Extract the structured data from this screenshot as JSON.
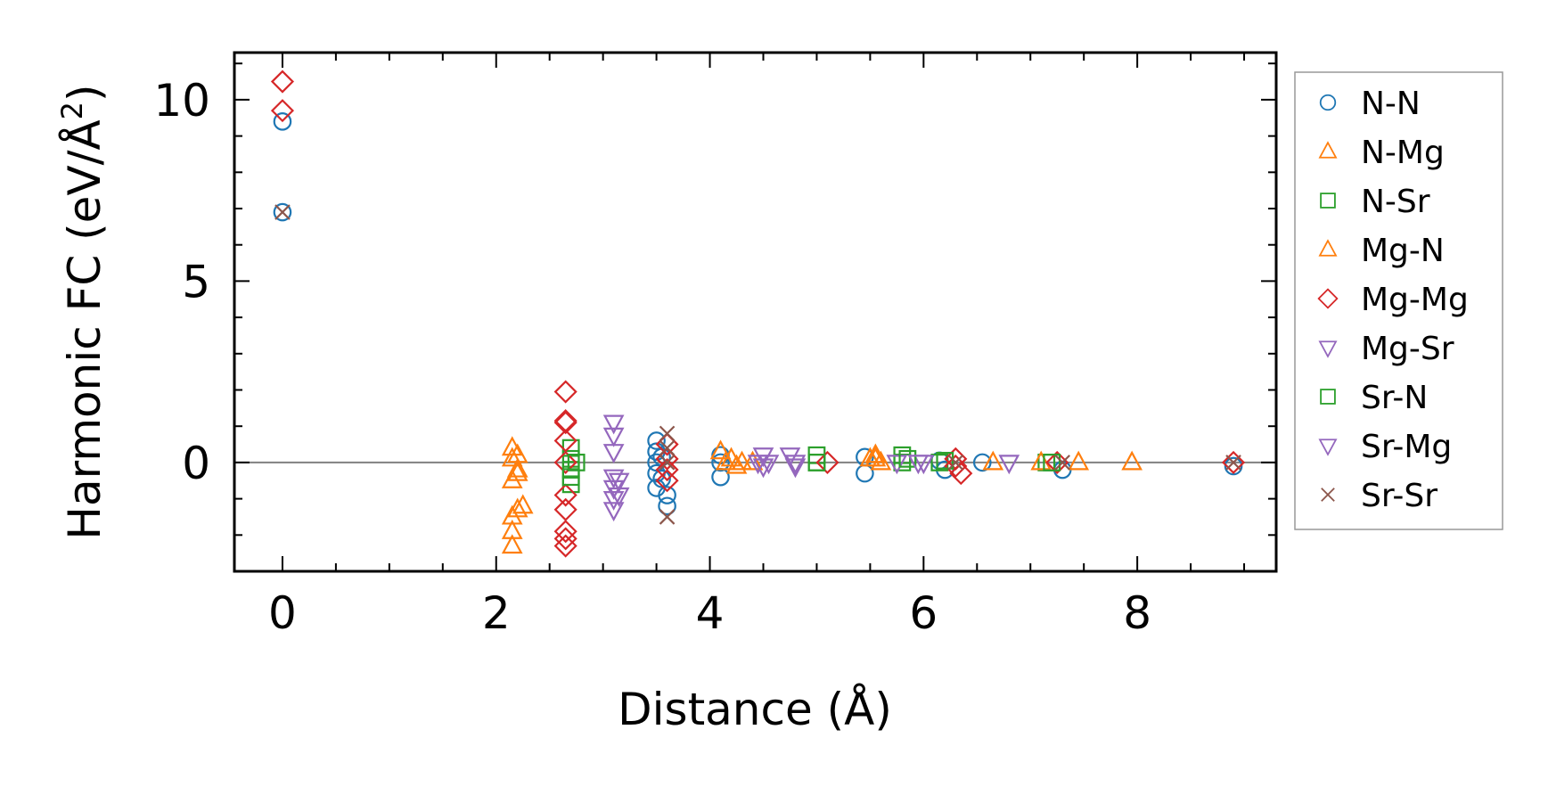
{
  "chart_data": {
    "type": "scatter",
    "xlabel": "Distance (Å)",
    "ylabel_prefix": "Harmonic FC (eV/Å",
    "ylabel_sup": "2",
    "ylabel_suffix": ")",
    "xlim": [
      -0.45,
      9.3
    ],
    "ylim": [
      -3.0,
      11.3
    ],
    "x_ticks": [
      0,
      2,
      4,
      6,
      8
    ],
    "x_tick_labels": [
      "0",
      "2",
      "4",
      "6",
      "8"
    ],
    "y_ticks": [
      0,
      5,
      10
    ],
    "y_tick_labels": [
      "0",
      "5",
      "10"
    ],
    "x_minor_step": 0.5,
    "y_minor_step": 1,
    "grid": false,
    "zero_line": true,
    "legend_position": "outside-right",
    "series": [
      {
        "name": "N-N",
        "marker": "circle",
        "color": "#1f77b4",
        "points": [
          [
            0,
            9.4
          ],
          [
            0,
            6.9
          ],
          [
            3.5,
            0.6
          ],
          [
            3.5,
            0.3
          ],
          [
            3.5,
            0.0
          ],
          [
            3.5,
            -0.3
          ],
          [
            3.5,
            -0.7
          ],
          [
            3.55,
            0.15
          ],
          [
            3.55,
            -0.45
          ],
          [
            3.6,
            -1.2
          ],
          [
            3.6,
            -0.9
          ],
          [
            4.1,
            0.2
          ],
          [
            4.1,
            0.0
          ],
          [
            4.1,
            -0.4
          ],
          [
            5.45,
            0.15
          ],
          [
            5.45,
            -0.3
          ],
          [
            6.15,
            0.05
          ],
          [
            6.2,
            -0.2
          ],
          [
            6.55,
            0.0
          ],
          [
            7.3,
            -0.2
          ],
          [
            8.9,
            -0.1
          ]
        ]
      },
      {
        "name": "N-Mg",
        "marker": "triangle-up",
        "color": "#ff7f0e",
        "points": [
          [
            2.15,
            0.4
          ],
          [
            2.15,
            0.1
          ],
          [
            2.15,
            -0.5
          ],
          [
            2.15,
            -1.5
          ],
          [
            2.2,
            -1.3
          ],
          [
            2.15,
            -2.3
          ],
          [
            2.2,
            -0.2
          ],
          [
            2.25,
            -1.2
          ],
          [
            4.1,
            0.3
          ],
          [
            4.15,
            0.0
          ],
          [
            4.2,
            0.1
          ],
          [
            4.25,
            -0.1
          ],
          [
            5.5,
            0.1
          ],
          [
            5.55,
            0.2
          ],
          [
            5.6,
            0.0
          ],
          [
            6.65,
            0.0
          ],
          [
            7.45,
            0.0
          ],
          [
            7.95,
            0.0
          ]
        ]
      },
      {
        "name": "N-Sr",
        "marker": "square",
        "color": "#2ca02c",
        "points": [
          [
            2.7,
            0.4
          ],
          [
            2.7,
            0.1
          ],
          [
            2.7,
            -0.2
          ],
          [
            2.7,
            -0.6
          ],
          [
            5.0,
            0.2
          ],
          [
            5.0,
            0.0
          ],
          [
            5.8,
            0.2
          ],
          [
            5.8,
            0.0
          ],
          [
            6.15,
            0.0
          ],
          [
            7.15,
            0.0
          ]
        ]
      },
      {
        "name": "Mg-N",
        "marker": "triangle-up",
        "color": "#ff7f0e",
        "points": [
          [
            2.2,
            0.2
          ],
          [
            2.2,
            -0.3
          ],
          [
            2.15,
            -1.9
          ],
          [
            4.3,
            0.0
          ],
          [
            4.4,
            0.0
          ],
          [
            5.55,
            0.1
          ],
          [
            7.1,
            0.0
          ]
        ]
      },
      {
        "name": "Mg-Mg",
        "marker": "diamond",
        "color": "#d62728",
        "points": [
          [
            0,
            10.5
          ],
          [
            0,
            9.7
          ],
          [
            2.65,
            1.95
          ],
          [
            2.65,
            1.1
          ],
          [
            2.65,
            1.15
          ],
          [
            2.65,
            0.6
          ],
          [
            2.65,
            0.0
          ],
          [
            2.65,
            -0.9
          ],
          [
            2.65,
            -1.3
          ],
          [
            2.65,
            -1.9
          ],
          [
            2.65,
            -2.1
          ],
          [
            2.65,
            -2.3
          ],
          [
            3.6,
            0.5
          ],
          [
            3.6,
            0.1
          ],
          [
            3.6,
            -0.2
          ],
          [
            3.6,
            -0.5
          ],
          [
            5.1,
            0.0
          ],
          [
            6.3,
            0.1
          ],
          [
            6.3,
            -0.1
          ],
          [
            6.35,
            -0.3
          ],
          [
            7.25,
            0.0
          ],
          [
            8.9,
            0.0
          ]
        ]
      },
      {
        "name": "Mg-Sr",
        "marker": "triangle-down",
        "color": "#9467bd",
        "points": [
          [
            3.1,
            1.1
          ],
          [
            3.1,
            0.75
          ],
          [
            3.1,
            0.3
          ],
          [
            3.1,
            -0.4
          ],
          [
            3.1,
            -0.7
          ],
          [
            3.1,
            -1.0
          ],
          [
            3.1,
            -1.3
          ],
          [
            4.5,
            0.2
          ],
          [
            4.5,
            -0.1
          ],
          [
            4.55,
            0.0
          ],
          [
            4.75,
            0.2
          ],
          [
            4.8,
            -0.1
          ],
          [
            5.75,
            0.0
          ],
          [
            6.0,
            0.0
          ],
          [
            6.8,
            0.0
          ]
        ]
      },
      {
        "name": "Sr-N",
        "marker": "square",
        "color": "#2ca02c",
        "points": [
          [
            2.7,
            -0.4
          ],
          [
            2.75,
            0.0
          ],
          [
            5.0,
            0.0
          ],
          [
            5.85,
            0.1
          ],
          [
            6.2,
            0.05
          ],
          [
            7.2,
            0.0
          ]
        ]
      },
      {
        "name": "Sr-Mg",
        "marker": "triangle-down",
        "color": "#9467bd",
        "points": [
          [
            3.15,
            -0.5
          ],
          [
            3.15,
            -0.9
          ],
          [
            4.45,
            0.0
          ],
          [
            4.8,
            0.0
          ],
          [
            5.95,
            0.0
          ]
        ]
      },
      {
        "name": "Sr-Sr",
        "marker": "x",
        "color": "#8c564b",
        "points": [
          [
            0,
            6.9
          ],
          [
            3.6,
            0.8
          ],
          [
            3.6,
            0.4
          ],
          [
            3.6,
            0.0
          ],
          [
            3.6,
            -1.5
          ],
          [
            6.3,
            0.0
          ],
          [
            7.3,
            0.0
          ],
          [
            8.9,
            0.0
          ]
        ]
      }
    ]
  }
}
